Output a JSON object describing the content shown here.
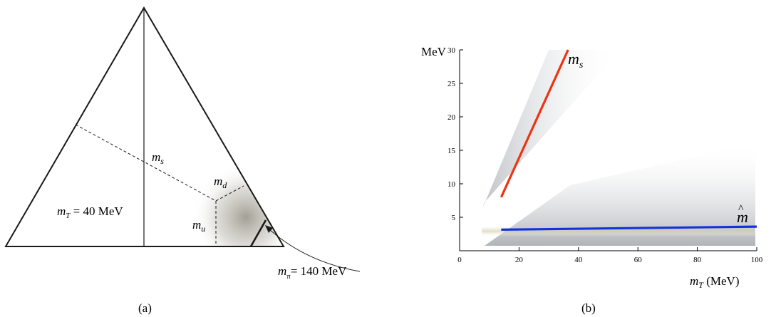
{
  "panel_a": {
    "caption": "(a)",
    "labels": {
      "ms": {
        "main": "m",
        "sub": "s"
      },
      "md": {
        "main": "m",
        "sub": "d"
      },
      "mu": {
        "main": "m",
        "sub": "u"
      },
      "mT": {
        "main": "m",
        "sub": "T",
        "rest": " = 40 MeV"
      },
      "mpi": {
        "main": "m",
        "sub": "π",
        "rest": "= 140 MeV"
      }
    },
    "colors": {
      "shade": "#b8b5ad",
      "line": "#1a1a1a"
    }
  },
  "panel_b": {
    "caption": "(b)",
    "y_unit_label": "MeV",
    "x_label_main": "m",
    "x_label_sub": "T",
    "x_label_rest": " (MeV)",
    "series_labels": {
      "ms": {
        "main": "m",
        "sub": "s"
      },
      "mhat": {
        "main": "m",
        "hat": "^"
      }
    }
  },
  "chart_data": {
    "type": "line",
    "xlabel": "m_T (MeV)",
    "ylabel": "MeV",
    "xlim": [
      0,
      100
    ],
    "ylim": [
      0,
      30
    ],
    "x_ticks": [
      0,
      20,
      40,
      60,
      80,
      100
    ],
    "y_ticks": [
      5,
      10,
      15,
      20,
      25,
      30
    ],
    "grid": false,
    "series": [
      {
        "name": "m_s",
        "color": "#ee3311",
        "x": [
          14,
          36.5
        ],
        "y": [
          8,
          30
        ]
      },
      {
        "name": "m̂",
        "color": "#1133dd",
        "x": [
          14,
          100
        ],
        "y": [
          3.15,
          3.6
        ]
      }
    ]
  }
}
